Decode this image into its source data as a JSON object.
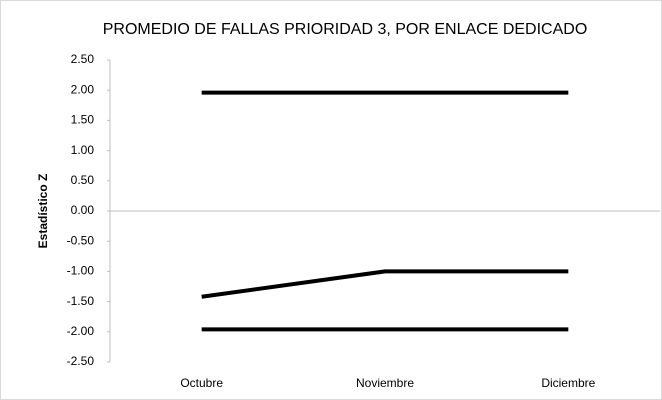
{
  "chart_data": {
    "type": "line",
    "title": "PROMEDIO DE FALLAS PRIORIDAD 3, POR ENLACE DEDICADO",
    "y_label": "Estadístico Z",
    "categories": [
      "Octubre",
      "Noviembre",
      "Diciembre"
    ],
    "series": [
      {
        "color": "#000000",
        "values": [
          1.96,
          1.96,
          1.96
        ]
      },
      {
        "color": "#000000",
        "values": [
          -1.42,
          -1.0,
          -1.0
        ]
      },
      {
        "color": "#000000",
        "values": [
          -1.96,
          -1.96,
          -1.96
        ]
      }
    ],
    "ylim": [
      -2.5,
      2.5
    ],
    "yticks": [
      {
        "value": 2.5,
        "label": "2.50"
      },
      {
        "value": 2,
        "label": "2.00"
      },
      {
        "value": 1.5,
        "label": "1.50"
      },
      {
        "value": 1,
        "label": "1.00"
      },
      {
        "value": 0.5,
        "label": "0.50"
      },
      {
        "value": 0,
        "label": "0.00"
      },
      {
        "value": -0.5,
        "label": "-0.50"
      },
      {
        "value": -1,
        "label": "-1.00"
      },
      {
        "value": -1.5,
        "label": "-1.50"
      },
      {
        "value": -2,
        "label": "-2.00"
      },
      {
        "value": -2.5,
        "label": "-2.50"
      }
    ],
    "grid": false
  }
}
